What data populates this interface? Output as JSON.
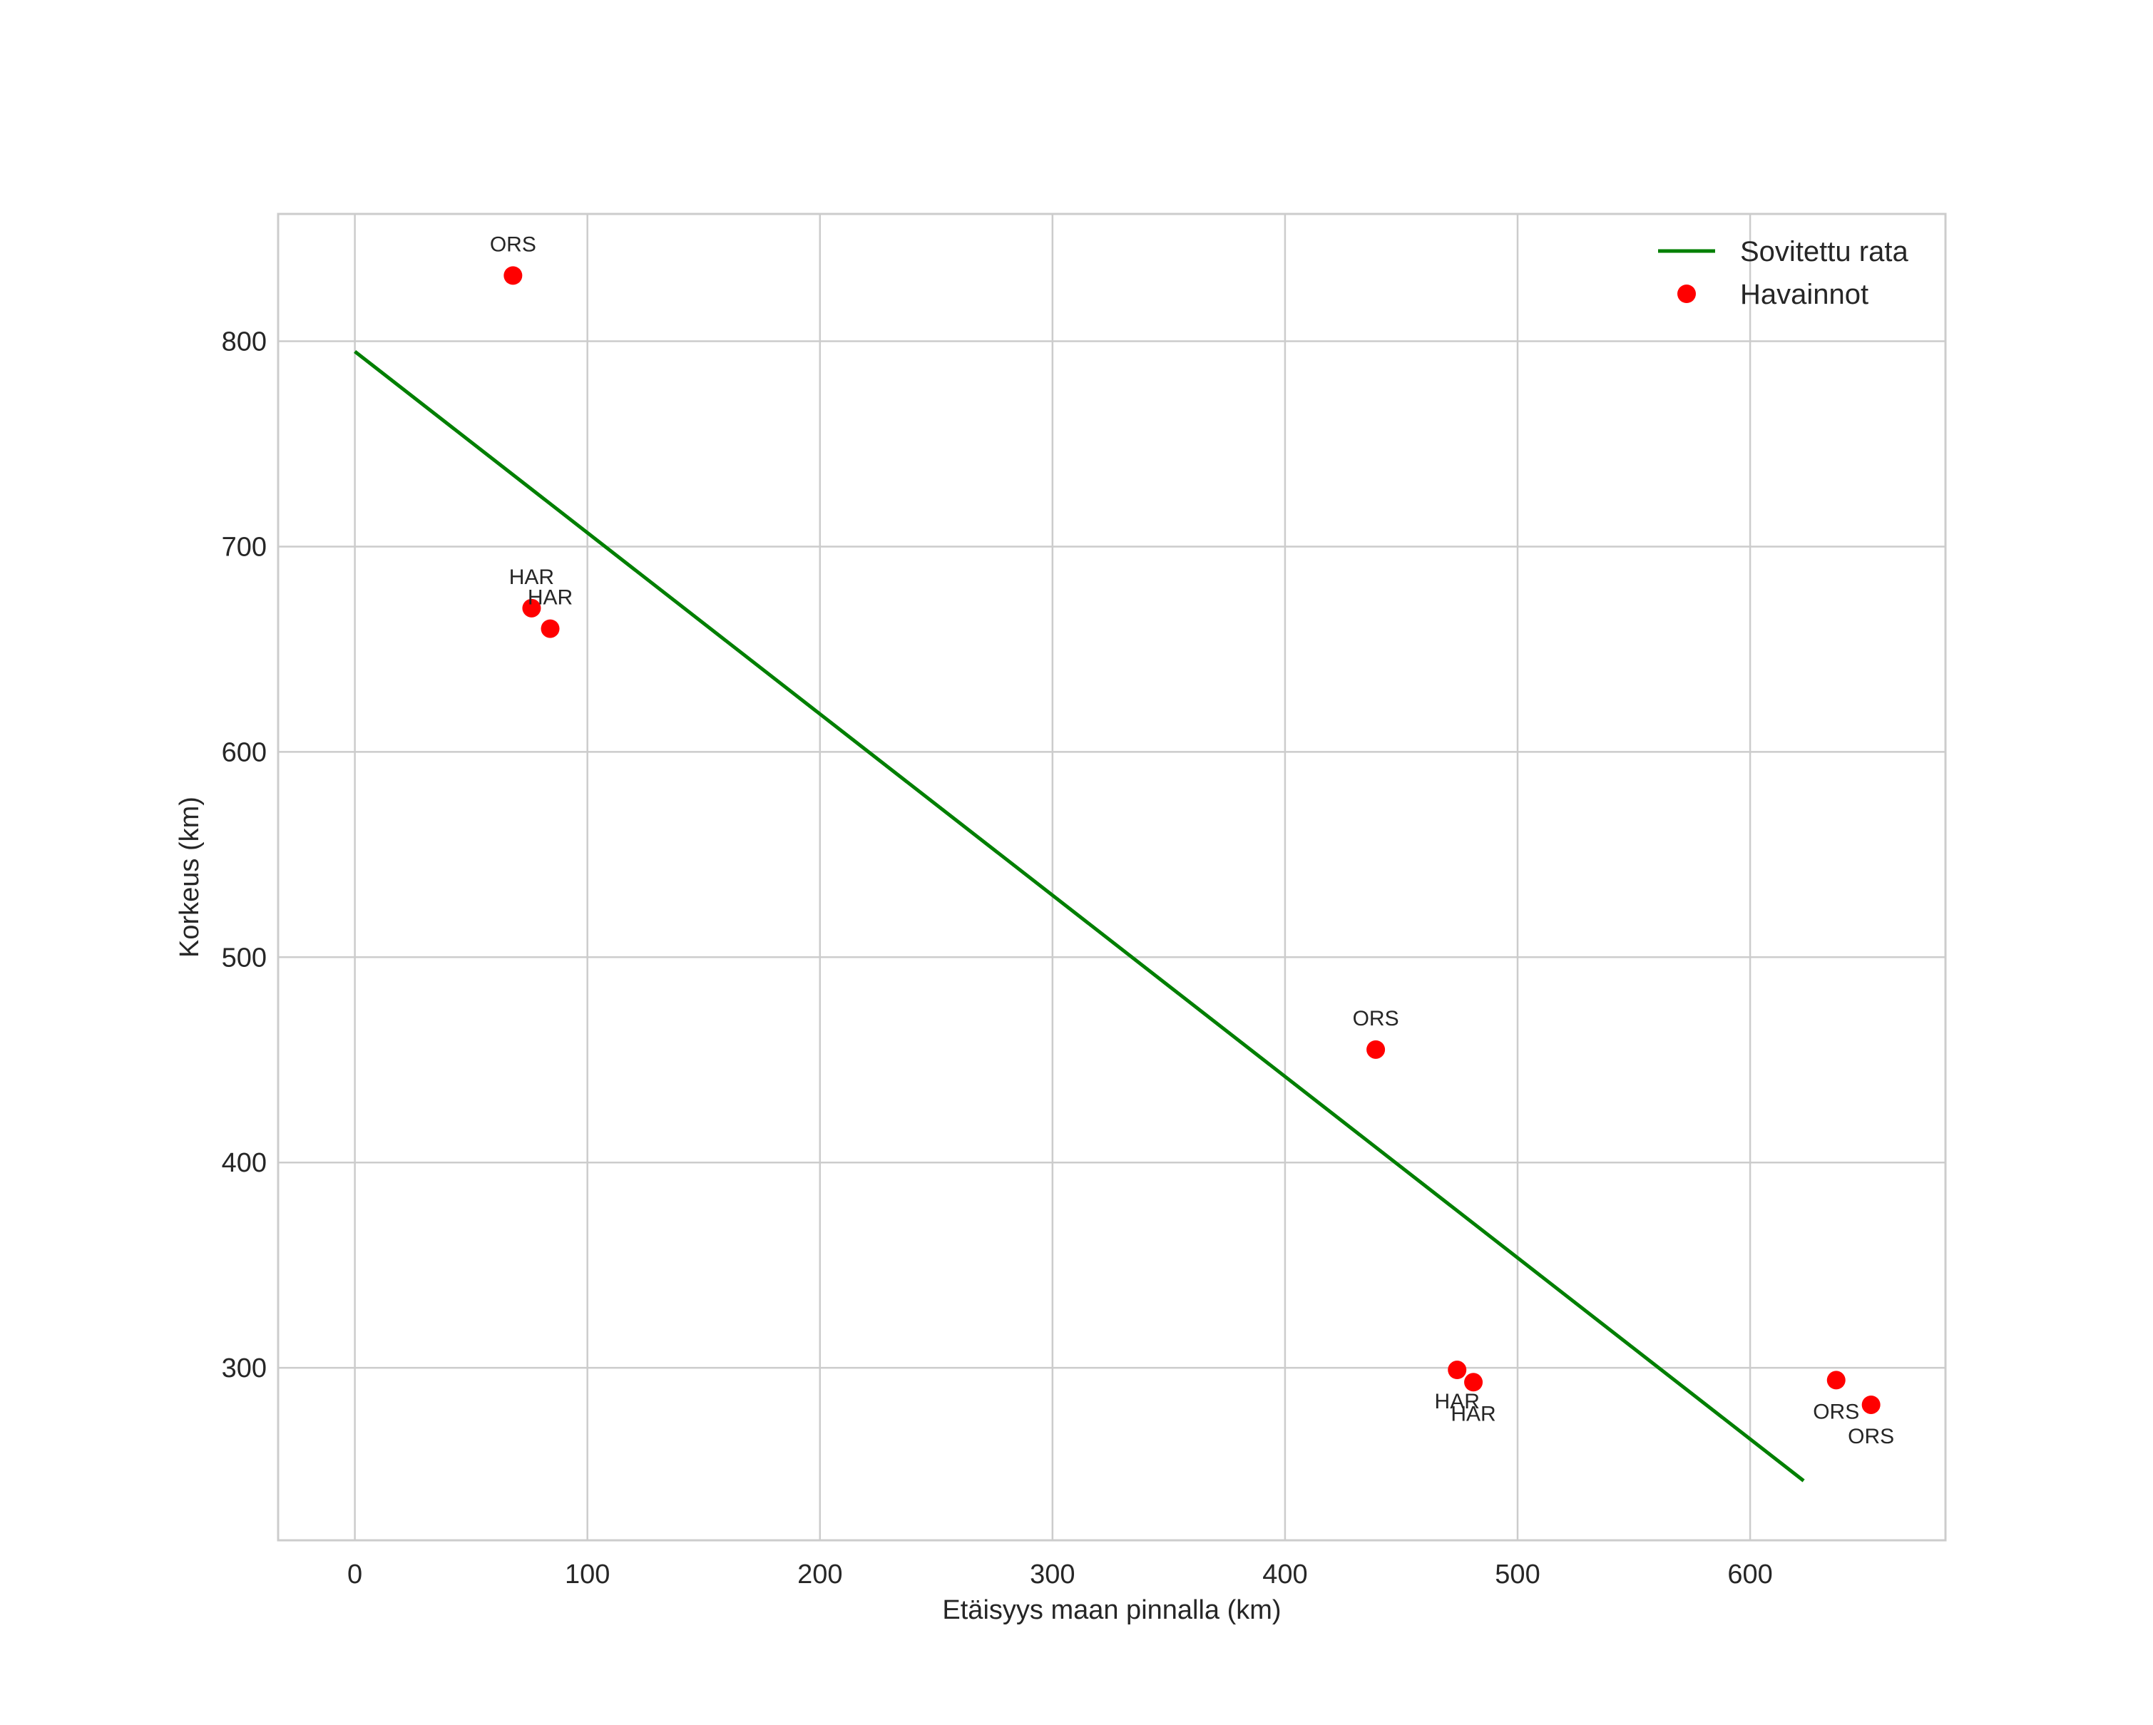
{
  "chart_data": {
    "type": "scatter",
    "title": "",
    "xlabel": "Etäisyys maan pinnalla (km)",
    "ylabel": "Korkeus (km)",
    "xlim": [
      -33,
      684
    ],
    "ylim": [
      216,
      862
    ],
    "xticks": [
      0,
      100,
      200,
      300,
      400,
      500,
      600
    ],
    "yticks": [
      300,
      400,
      500,
      600,
      700,
      800
    ],
    "grid": true,
    "legend_position": "top-right",
    "colors": {
      "line": "#007f00",
      "points": "#ff0000",
      "grid": "#cccccc",
      "text": "#262626"
    },
    "series": [
      {
        "name": "Sovitettu rata",
        "kind": "line",
        "x": [
          0,
          623
        ],
        "y": [
          795,
          245
        ]
      },
      {
        "name": "Havainnot",
        "kind": "scatter",
        "points": [
          {
            "x": 68,
            "y": 832,
            "label": "ORS",
            "label_pos": "above"
          },
          {
            "x": 76,
            "y": 670,
            "label": "HAR",
            "label_pos": "above"
          },
          {
            "x": 84,
            "y": 660,
            "label": "HAR",
            "label_pos": "above"
          },
          {
            "x": 439,
            "y": 455,
            "label": "ORS",
            "label_pos": "above"
          },
          {
            "x": 474,
            "y": 299,
            "label": "HAR",
            "label_pos": "below"
          },
          {
            "x": 481,
            "y": 293,
            "label": "HAR",
            "label_pos": "below"
          },
          {
            "x": 637,
            "y": 294,
            "label": "ORS",
            "label_pos": "below"
          },
          {
            "x": 652,
            "y": 282,
            "label": "ORS",
            "label_pos": "below"
          }
        ]
      }
    ]
  }
}
